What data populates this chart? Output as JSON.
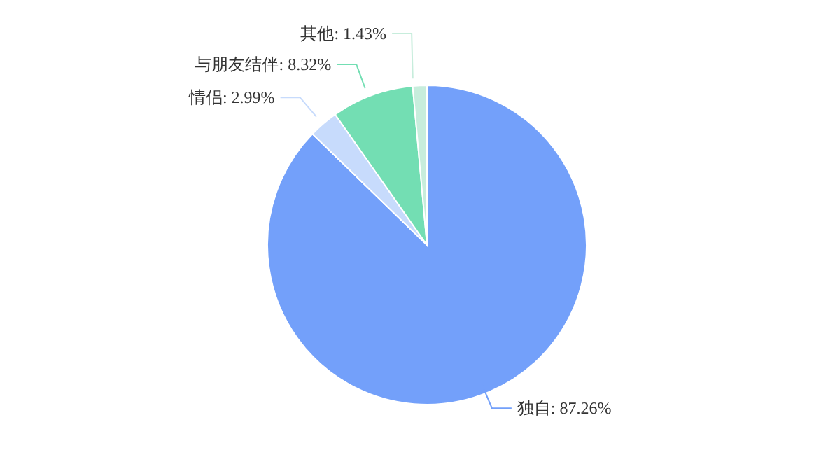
{
  "chart_data": {
    "type": "pie",
    "categories": [
      "独自",
      "情侣",
      "与朋友结伴",
      "其他"
    ],
    "values": [
      87.26,
      2.99,
      8.32,
      1.43
    ],
    "colors": [
      "#73a0fa",
      "#c7dbfc",
      "#73deb3",
      "#c7eddc"
    ],
    "value_labels": [
      ": 87.26%",
      ": 2.99%",
      ": 8.32%",
      ": 1.43%"
    ],
    "legend": false
  }
}
